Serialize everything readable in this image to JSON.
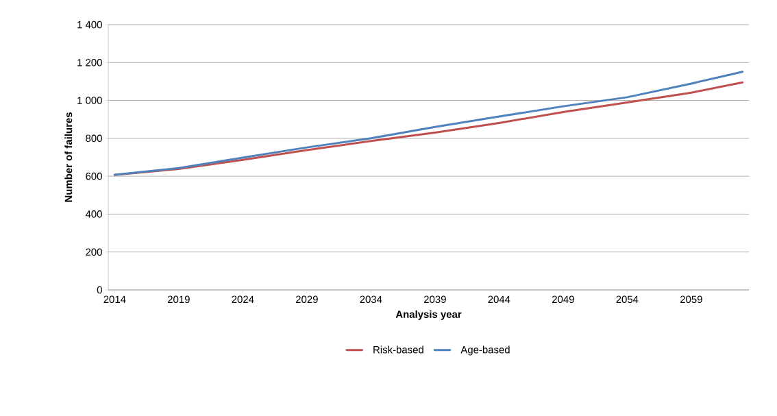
{
  "chart_data": {
    "type": "line",
    "xlabel": "Analysis year",
    "ylabel": "Number of failures",
    "xlim": [
      2013.5,
      2063.5
    ],
    "xticks": [
      2014,
      2019,
      2024,
      2029,
      2034,
      2039,
      2044,
      2049,
      2054,
      2059
    ],
    "ylim": [
      0,
      1400
    ],
    "yticks": [
      0,
      200,
      400,
      600,
      800,
      {
        "value": 1000,
        "label": "1 000"
      },
      {
        "value": 1200,
        "label": "1 200"
      },
      {
        "value": 1400,
        "label": "1 400"
      }
    ],
    "grid": "y",
    "legend": "bottom",
    "marker": "none",
    "line_style": "solid",
    "series": [
      {
        "name": "Risk-based",
        "color": "#c0504d",
        "x": [
          2014,
          2019,
          2024,
          2029,
          2034,
          2039,
          2044,
          2049,
          2054,
          2059,
          2063
        ],
        "values": [
          607,
          638,
          686,
          738,
          786,
          830,
          881,
          939,
          989,
          1041,
          1095
        ]
      },
      {
        "name": "Age-based",
        "color": "#4f81bd",
        "x": [
          2014,
          2019,
          2024,
          2029,
          2034,
          2039,
          2044,
          2049,
          2054,
          2059,
          2063
        ],
        "values": [
          608,
          643,
          698,
          752,
          800,
          860,
          915,
          969,
          1017,
          1089,
          1151
        ]
      }
    ]
  }
}
